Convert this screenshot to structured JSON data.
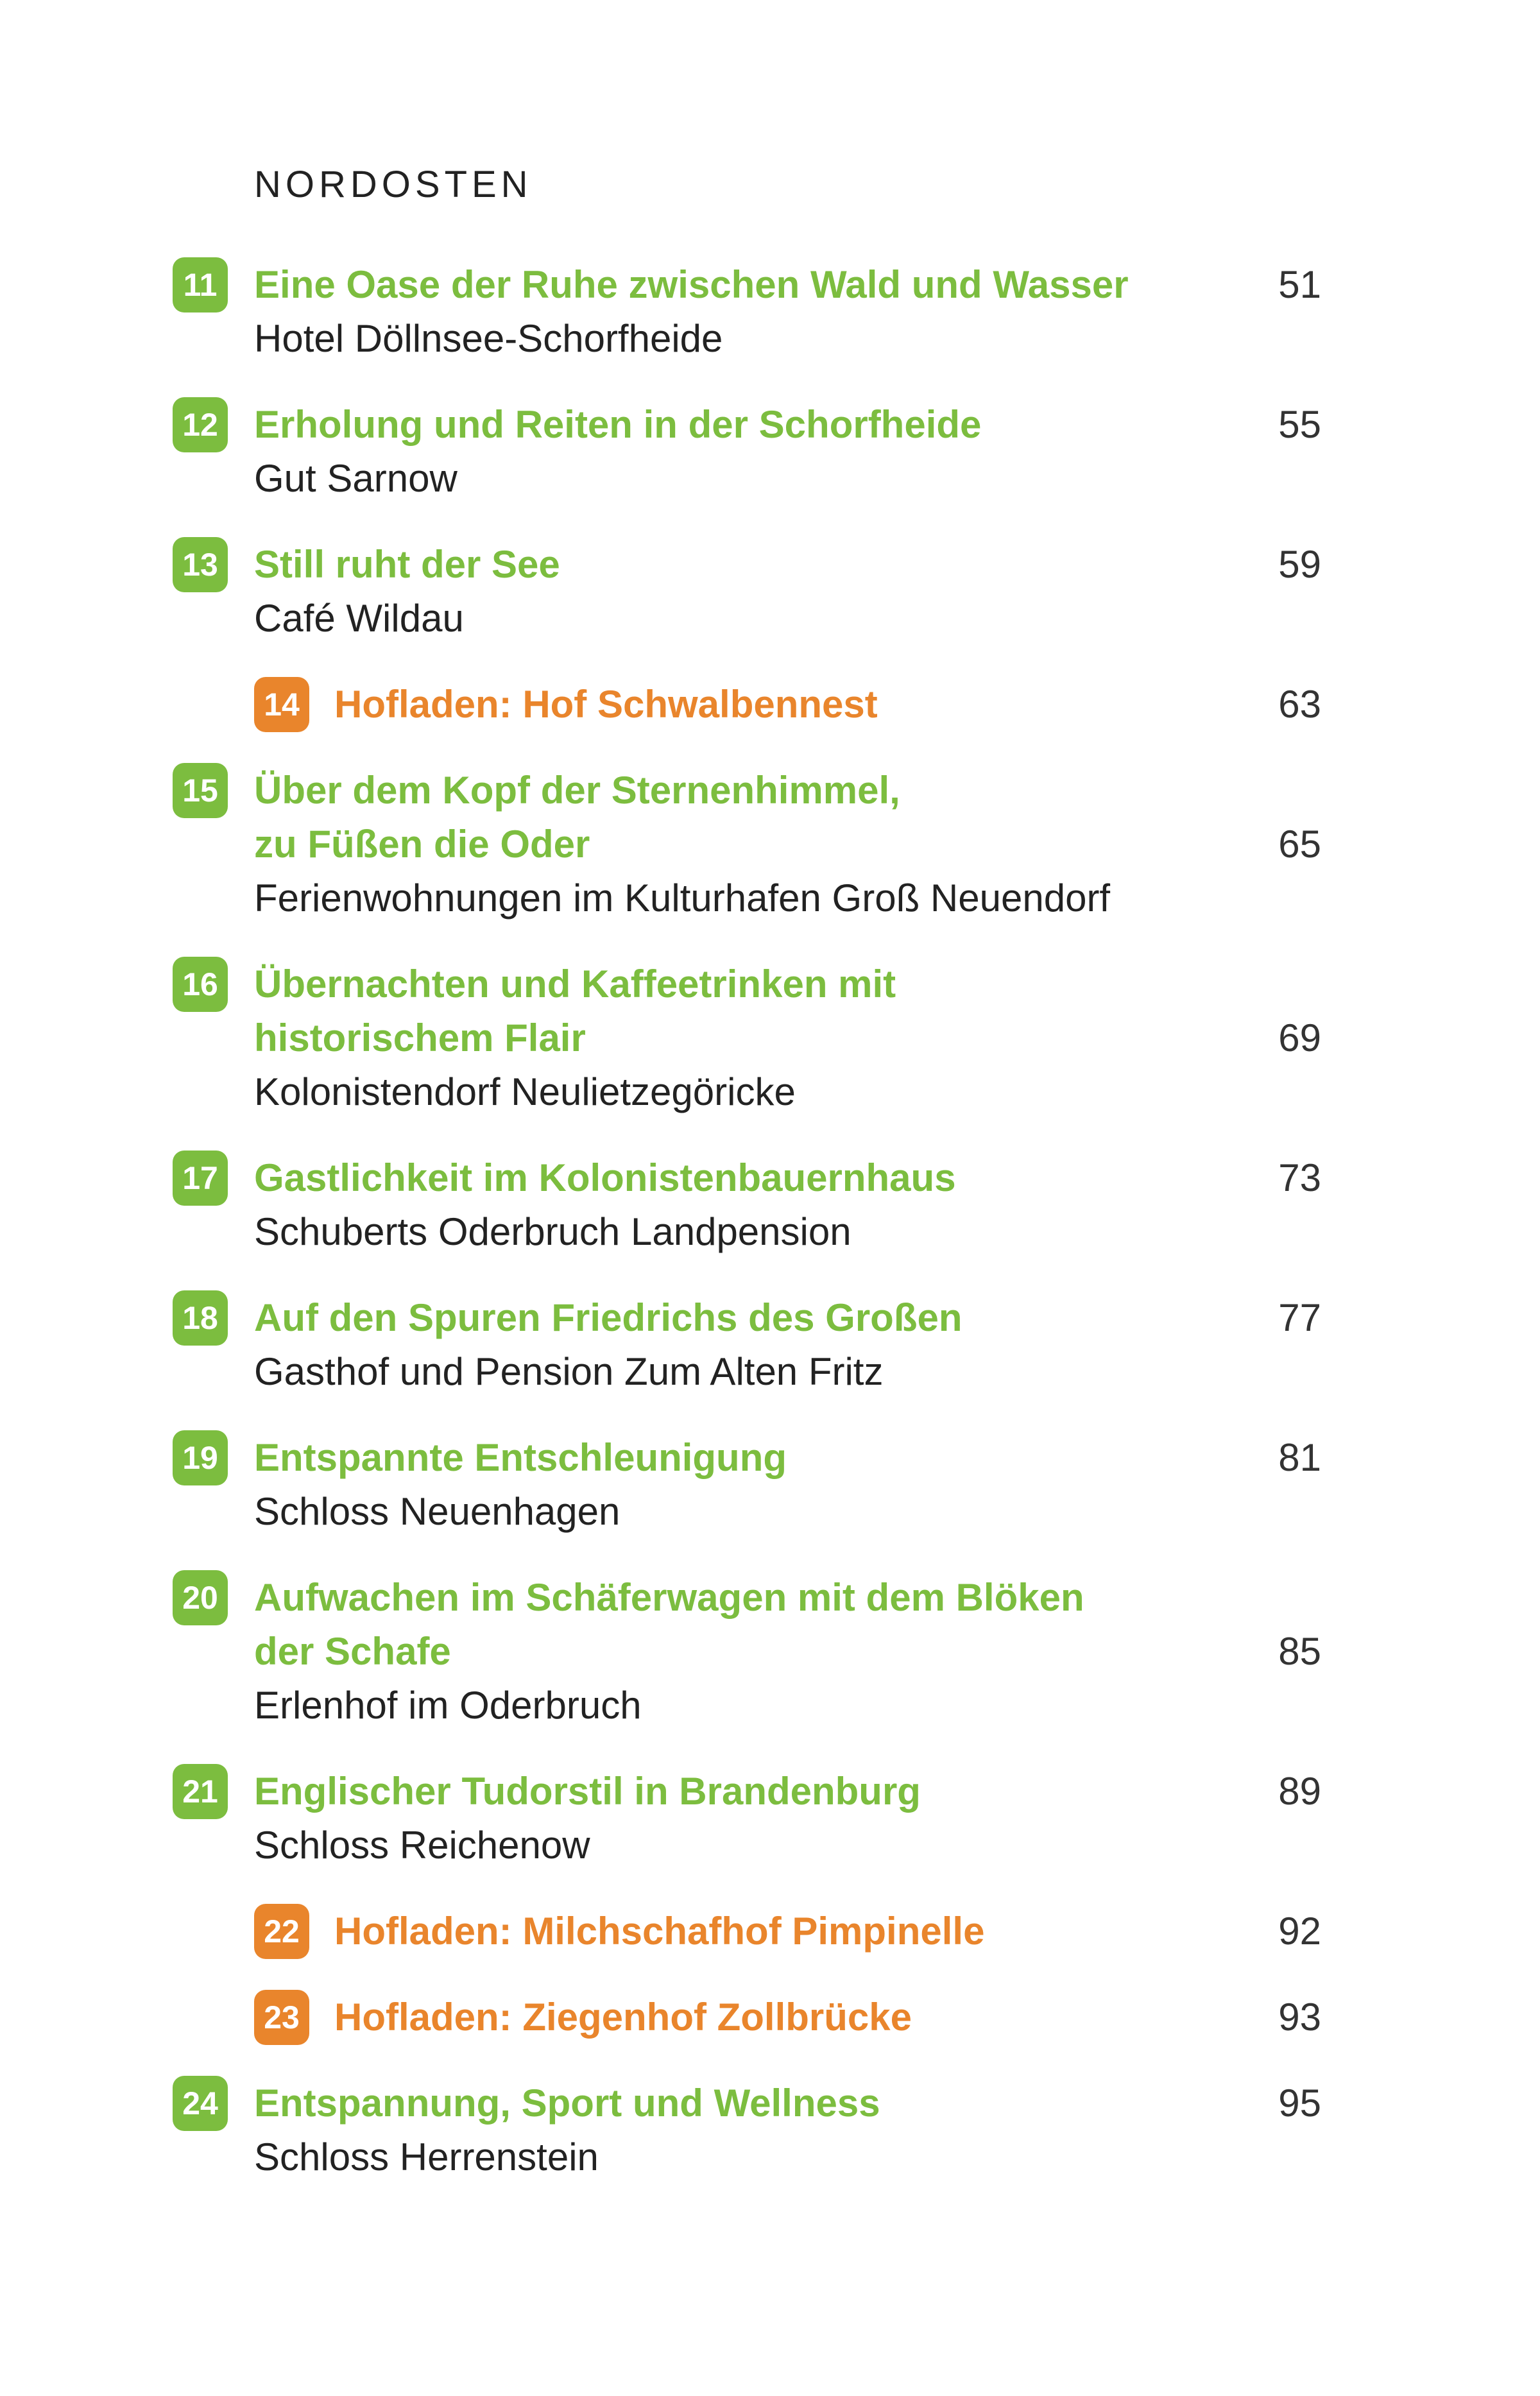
{
  "heading": "NORDOSTEN",
  "entries": [
    {
      "number": "11",
      "color": "#7cbd3f",
      "title_lines": [
        "Eine Oase der Ruhe zwischen Wald und Wasser"
      ],
      "subtitle": "Hotel Döllnsee-Schorfheide",
      "page": "51"
    },
    {
      "number": "12",
      "color": "#7cbd3f",
      "title_lines": [
        "Erholung und Reiten in der Schorfheide"
      ],
      "subtitle": "Gut Sarnow",
      "page": "55"
    },
    {
      "number": "13",
      "color": "#7cbd3f",
      "title_lines": [
        "Still ruht der See"
      ],
      "subtitle": "Café Wildau",
      "page": "59"
    },
    {
      "number": "14",
      "color": "#e9852c",
      "title_lines": [
        "Hofladen: Hof Schwalbennest"
      ],
      "page": "63"
    },
    {
      "number": "15",
      "color": "#7cbd3f",
      "title_lines": [
        "Über dem Kopf der Sternenhimmel,",
        "zu Füßen die Oder"
      ],
      "subtitle": "Ferienwohnungen im Kulturhafen Groß Neuendorf",
      "page": "65"
    },
    {
      "number": "16",
      "color": "#7cbd3f",
      "title_lines": [
        "Übernachten und Kaffeetrinken mit",
        "historischem Flair"
      ],
      "subtitle": "Kolonistendorf Neulietzegöricke",
      "page": "69"
    },
    {
      "number": "17",
      "color": "#7cbd3f",
      "title_lines": [
        "Gastlichkeit im Kolonistenbauernhaus"
      ],
      "subtitle": "Schuberts Oderbruch Landpension",
      "page": "73"
    },
    {
      "number": "18",
      "color": "#7cbd3f",
      "title_lines": [
        "Auf den Spuren Friedrichs des Großen"
      ],
      "subtitle": "Gasthof und Pension Zum Alten Fritz",
      "page": "77"
    },
    {
      "number": "19",
      "color": "#7cbd3f",
      "title_lines": [
        "Entspannte Entschleunigung"
      ],
      "subtitle": "Schloss Neuenhagen",
      "page": "81"
    },
    {
      "number": "20",
      "color": "#7cbd3f",
      "title_lines": [
        "Aufwachen im Schäferwagen mit dem Blöken",
        "der Schafe"
      ],
      "subtitle": "Erlenhof im Oderbruch",
      "page": "85"
    },
    {
      "number": "21",
      "color": "#7cbd3f",
      "title_lines": [
        "Englischer Tudorstil in Brandenburg"
      ],
      "subtitle": "Schloss Reichenow",
      "page": "89"
    },
    {
      "number": "22",
      "color": "#e9852c",
      "title_lines": [
        "Hofladen: Milchschafhof Pimpinelle"
      ],
      "page": "92"
    },
    {
      "number": "23",
      "color": "#e9852c",
      "title_lines": [
        "Hofladen: Ziegenhof Zollbrücke"
      ],
      "page": "93"
    },
    {
      "number": "24",
      "color": "#7cbd3f",
      "title_lines": [
        "Entspannung, Sport und Wellness"
      ],
      "subtitle": "Schloss Herrenstein",
      "page": "95"
    }
  ]
}
